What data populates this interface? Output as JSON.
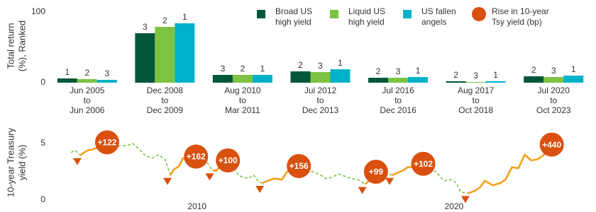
{
  "chart_data": [
    {
      "type": "bar",
      "ylabel": [
        "Total return",
        "(%), Ranked"
      ],
      "categories": [
        [
          "Jun 2005",
          "to",
          "Jun 2006"
        ],
        [
          "Dec 2008",
          "to",
          "Dec 2009"
        ],
        [
          "Aug 2010",
          "to",
          "Mar 2011"
        ],
        [
          "Jul 2012",
          "to",
          "Dec 2013"
        ],
        [
          "Jul 2016",
          "to",
          "Dec 2016"
        ],
        [
          "Aug 2017",
          "to",
          "Oct 2018"
        ],
        [
          "Jul 2020",
          "to",
          "Oct 2023"
        ]
      ],
      "series": [
        {
          "name": "Broad US high yield",
          "color": "#00573a",
          "values": [
            6,
            70,
            11,
            16,
            7,
            2,
            9
          ],
          "ranks": [
            1,
            3,
            3,
            2,
            2,
            2,
            2
          ]
        },
        {
          "name": "Liquid US high yield",
          "color": "#7dc242",
          "values": [
            5,
            79,
            11,
            15,
            7,
            1,
            8
          ],
          "ranks": [
            2,
            2,
            2,
            3,
            3,
            3,
            3
          ]
        },
        {
          "name": "US fallen angels",
          "color": "#00b2c9",
          "values": [
            4,
            84,
            11,
            19,
            8,
            2,
            10
          ],
          "ranks": [
            3,
            1,
            1,
            1,
            1,
            1,
            1
          ]
        }
      ],
      "ylim": [
        0,
        100
      ],
      "yticks": [
        0,
        100
      ]
    },
    {
      "type": "line",
      "ylabel": [
        "10-year Treasury",
        "yield (%)"
      ],
      "x": [
        2005.1,
        2005.25,
        2005.45,
        2005.6,
        2005.75,
        2005.9,
        2006.1,
        2006.3,
        2006.5,
        2006.75,
        2007.0,
        2007.25,
        2007.5,
        2007.75,
        2008.0,
        2008.25,
        2008.5,
        2008.75,
        2008.96,
        2009.1,
        2009.3,
        2009.45,
        2009.6,
        2009.8,
        2009.96,
        2010.25,
        2010.4,
        2010.6,
        2010.75,
        2010.9,
        2011.05,
        2011.2,
        2011.4,
        2011.6,
        2011.8,
        2012.0,
        2012.2,
        2012.4,
        2012.55,
        2012.75,
        2013.0,
        2013.3,
        2013.5,
        2013.75,
        2013.96,
        2014.25,
        2014.5,
        2014.75,
        2015.0,
        2015.25,
        2015.5,
        2015.75,
        2016.0,
        2016.25,
        2016.54,
        2016.75,
        2016.96,
        2017.2,
        2017.4,
        2017.6,
        2017.8,
        2018.0,
        2018.2,
        2018.5,
        2018.8,
        2019.0,
        2019.3,
        2019.6,
        2019.9,
        2020.1,
        2020.25,
        2020.55,
        2020.8,
        2021.0,
        2021.2,
        2021.5,
        2021.8,
        2022.0,
        2022.25,
        2022.5,
        2022.75,
        2023.0,
        2023.25,
        2023.5,
        2023.8,
        2024.0,
        2024.3
      ],
      "values": [
        4.2,
        4.4,
        3.95,
        4.2,
        4.4,
        4.45,
        4.6,
        5.0,
        5.1,
        4.7,
        4.8,
        4.8,
        5.0,
        4.5,
        3.9,
        3.7,
        4.0,
        3.6,
        2.2,
        2.7,
        3.0,
        3.7,
        3.5,
        3.4,
        3.84,
        3.8,
        3.3,
        2.6,
        2.6,
        3.0,
        3.4,
        3.5,
        3.1,
        2.2,
        2.0,
        1.9,
        2.2,
        1.6,
        1.5,
        1.7,
        1.9,
        1.8,
        2.5,
        2.6,
        3.0,
        2.7,
        2.5,
        2.3,
        1.9,
        2.0,
        2.3,
        2.1,
        1.9,
        1.8,
        1.4,
        1.8,
        2.5,
        2.4,
        2.3,
        2.2,
        2.4,
        2.6,
        2.9,
        2.9,
        3.2,
        2.7,
        2.5,
        1.7,
        1.8,
        1.5,
        0.7,
        0.6,
        0.8,
        1.1,
        1.7,
        1.3,
        1.5,
        1.8,
        2.9,
        2.8,
        4.0,
        3.5,
        3.6,
        4.0,
        4.9,
        4.0,
        4.6
      ],
      "line_color": "#7dc242",
      "highlight_color": "#f5a01a",
      "annotation_name": "Rise in 10-year Tsy yield (bp)",
      "annotation_color": "#d9500f",
      "periods": [
        {
          "start": 2005.45,
          "end": 2006.5,
          "value": 122,
          "label": "+122"
        },
        {
          "start": 2008.96,
          "end": 2009.96,
          "value": 162,
          "label": "+162"
        },
        {
          "start": 2010.6,
          "end": 2011.2,
          "value": 100,
          "label": "+100"
        },
        {
          "start": 2012.55,
          "end": 2013.96,
          "value": 156,
          "label": "+156"
        },
        {
          "start": 2016.54,
          "end": 2016.96,
          "value": 99,
          "label": "+99"
        },
        {
          "start": 2017.6,
          "end": 2018.8,
          "value": 102,
          "label": "+102"
        },
        {
          "start": 2020.55,
          "end": 2023.8,
          "value": 440,
          "label": "+440"
        }
      ],
      "xlim": [
        2004.9,
        2024.5
      ],
      "xticks": [
        2010,
        2020
      ],
      "ylim": [
        0,
        6.5
      ],
      "yticks": [
        0,
        5
      ]
    }
  ]
}
